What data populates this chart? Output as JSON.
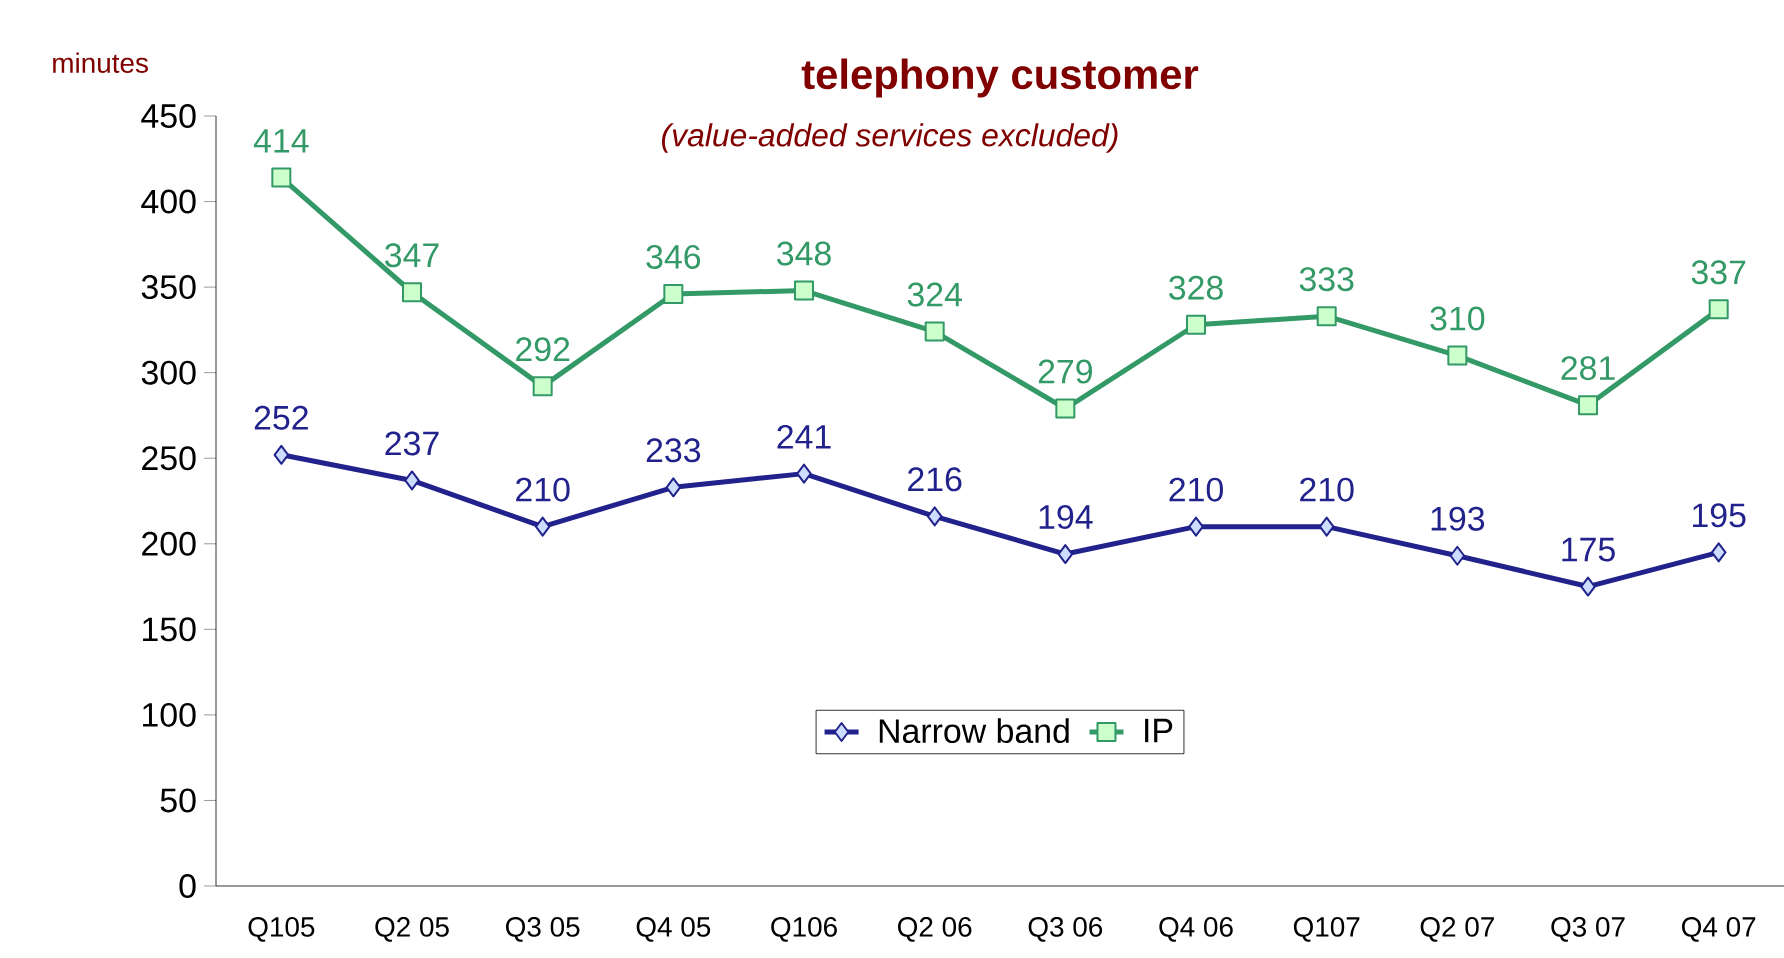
{
  "chart_data": {
    "type": "line",
    "title": "telephony customer",
    "subtitle": "(value-added services excluded)",
    "ylabel": "minutes",
    "categories": [
      "Q105",
      "Q2 05",
      "Q3 05",
      "Q4 05",
      "Q106",
      "Q2 06",
      "Q3 06",
      "Q4 06",
      "Q107",
      "Q2 07",
      "Q3 07",
      "Q4 07"
    ],
    "series": [
      {
        "name": "Narrow band",
        "color": "#22228c",
        "marker": "diamond",
        "values": [
          252,
          237,
          210,
          233,
          241,
          216,
          194,
          210,
          210,
          193,
          175,
          195
        ]
      },
      {
        "name": "IP",
        "color": "#339966",
        "marker": "square",
        "values": [
          414,
          347,
          292,
          346,
          348,
          324,
          279,
          328,
          333,
          310,
          281,
          337
        ]
      }
    ],
    "ylim": [
      0,
      450
    ],
    "yticks": [
      0,
      50,
      100,
      150,
      200,
      250,
      300,
      350,
      400,
      450
    ],
    "data_labels": true,
    "legend": "bottom",
    "grid": false
  }
}
